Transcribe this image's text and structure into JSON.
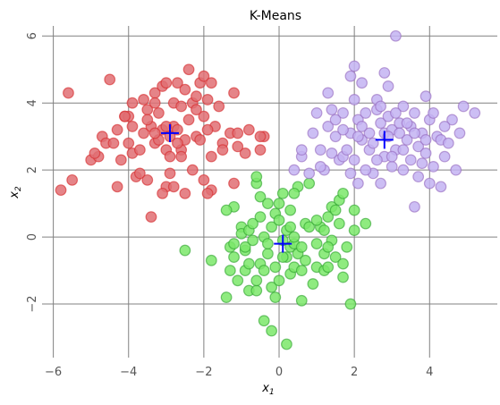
{
  "chart_data": {
    "type": "scatter",
    "title": "K-Means",
    "xlabel": "x",
    "xlabel_sub": "1",
    "ylabel": "x",
    "ylabel_sub": "2",
    "xlim": [
      -6.3,
      5.8
    ],
    "ylim": [
      -3.6,
      6.3
    ],
    "xticks": [
      -6,
      -4,
      -2,
      0,
      2,
      4
    ],
    "yticks": [
      -2,
      0,
      2,
      4,
      6
    ],
    "grid": true,
    "series": [
      {
        "color": "#d62728",
        "fill": "#e06f73",
        "points": [
          [
            -5.8,
            1.4
          ],
          [
            -5.5,
            1.7
          ],
          [
            -5.6,
            4.3
          ],
          [
            -5.0,
            2.3
          ],
          [
            -4.8,
            2.4
          ],
          [
            -4.7,
            3.0
          ],
          [
            -4.6,
            2.8
          ],
          [
            -4.4,
            2.8
          ],
          [
            -4.5,
            4.7
          ],
          [
            -4.3,
            3.2
          ],
          [
            -4.2,
            2.3
          ],
          [
            -4.1,
            3.6
          ],
          [
            -4.0,
            3.6
          ],
          [
            -4.0,
            2.8
          ],
          [
            -3.9,
            2.5
          ],
          [
            -3.9,
            4.0
          ],
          [
            -3.8,
            1.8
          ],
          [
            -3.7,
            1.9
          ],
          [
            -3.6,
            3.1
          ],
          [
            -3.5,
            1.7
          ],
          [
            -3.5,
            3.8
          ],
          [
            -3.4,
            3.3
          ],
          [
            -3.4,
            0.6
          ],
          [
            -3.3,
            4.3
          ],
          [
            -3.3,
            2.8
          ],
          [
            -3.2,
            2.9
          ],
          [
            -3.1,
            3.2
          ],
          [
            -3.1,
            4.5
          ],
          [
            -3.0,
            4.6
          ],
          [
            -3.0,
            2.6
          ],
          [
            -2.9,
            3.0
          ],
          [
            -2.9,
            2.4
          ],
          [
            -2.8,
            3.3
          ],
          [
            -2.8,
            4.0
          ],
          [
            -2.7,
            3.2
          ],
          [
            -2.6,
            2.6
          ],
          [
            -2.5,
            2.9
          ],
          [
            -2.4,
            3.5
          ],
          [
            -2.3,
            4.0
          ],
          [
            -2.2,
            3.0
          ],
          [
            -2.1,
            4.6
          ],
          [
            -2.0,
            3.6
          ],
          [
            -1.9,
            4.1
          ],
          [
            -1.8,
            2.4
          ],
          [
            -1.7,
            3.3
          ],
          [
            -1.5,
            2.8
          ],
          [
            -1.3,
            3.1
          ],
          [
            -1.2,
            4.3
          ],
          [
            -1.1,
            3.1
          ],
          [
            -0.9,
            2.5
          ],
          [
            -0.8,
            3.2
          ],
          [
            -0.5,
            2.6
          ],
          [
            -0.4,
            3.0
          ],
          [
            -3.6,
            4.1
          ],
          [
            -3.2,
            3.7
          ],
          [
            -2.6,
            3.9
          ],
          [
            -2.1,
            2.9
          ],
          [
            -1.9,
            3.2
          ],
          [
            -3.0,
            1.5
          ],
          [
            -2.8,
            1.5
          ],
          [
            -2.5,
            1.3
          ],
          [
            -1.8,
            1.4
          ],
          [
            -1.2,
            1.6
          ],
          [
            -2.3,
            2.0
          ],
          [
            -2.0,
            4.8
          ],
          [
            -1.6,
            3.9
          ],
          [
            -4.3,
            1.5
          ],
          [
            -2.4,
            5.0
          ],
          [
            -3.3,
            4.0
          ],
          [
            -2.7,
            4.6
          ],
          [
            -3.9,
            3.3
          ],
          [
            -2.2,
            4.2
          ],
          [
            -3.1,
            1.3
          ],
          [
            -2.0,
            1.7
          ],
          [
            -2.9,
            1.9
          ],
          [
            -1.9,
            1.3
          ],
          [
            -1.1,
            2.7
          ],
          [
            -0.5,
            3.0
          ],
          [
            -3.7,
            2.6
          ],
          [
            -4.9,
            2.5
          ],
          [
            -4.1,
            3.6
          ],
          [
            -3.3,
            3.1
          ],
          [
            -2.6,
            2.4
          ],
          [
            -1.5,
            2.6
          ],
          [
            -2.2,
            3.8
          ],
          [
            -2.7,
            2.8
          ],
          [
            -3.0,
            3.3
          ],
          [
            -2.5,
            4.4
          ],
          [
            -1.8,
            4.6
          ],
          [
            -3.5,
            3.5
          ]
        ]
      },
      {
        "color": "#2ca02c",
        "fill": "#7be86a",
        "points": [
          [
            -2.5,
            -0.4
          ],
          [
            -1.8,
            -0.7
          ],
          [
            -1.4,
            -1.8
          ],
          [
            -1.3,
            -1.0
          ],
          [
            -1.3,
            -0.3
          ],
          [
            -1.2,
            -0.6
          ],
          [
            -1.1,
            -1.3
          ],
          [
            -1.0,
            0.3
          ],
          [
            -1.0,
            0.1
          ],
          [
            -0.9,
            -1.0
          ],
          [
            -0.9,
            -0.4
          ],
          [
            -0.8,
            0.2
          ],
          [
            -0.8,
            -1.6
          ],
          [
            -0.7,
            0.4
          ],
          [
            -0.7,
            -0.1
          ],
          [
            -0.6,
            1.6
          ],
          [
            -0.6,
            -1.6
          ],
          [
            -0.5,
            -0.8
          ],
          [
            -0.5,
            1.2
          ],
          [
            -0.5,
            0.6
          ],
          [
            -0.4,
            -2.5
          ],
          [
            -0.4,
            -1.0
          ],
          [
            -0.4,
            0.0
          ],
          [
            -0.3,
            1.0
          ],
          [
            -0.3,
            -0.5
          ],
          [
            -0.2,
            -1.5
          ],
          [
            -0.2,
            0.3
          ],
          [
            -0.1,
            -0.9
          ],
          [
            -0.1,
            0.7
          ],
          [
            0.0,
            -1.3
          ],
          [
            0.0,
            1.0
          ],
          [
            0.1,
            -0.1
          ],
          [
            0.1,
            1.3
          ],
          [
            0.2,
            -0.6
          ],
          [
            0.2,
            0.2
          ],
          [
            0.3,
            -1.1
          ],
          [
            0.3,
            -0.3
          ],
          [
            0.3,
            0.8
          ],
          [
            0.4,
            -0.9
          ],
          [
            0.4,
            -0.2
          ],
          [
            0.4,
            0.0
          ],
          [
            0.5,
            -0.5
          ],
          [
            0.5,
            1.5
          ],
          [
            0.6,
            -0.3
          ],
          [
            0.6,
            -1.0
          ],
          [
            0.7,
            0.4
          ],
          [
            0.8,
            1.6
          ],
          [
            0.9,
            -1.4
          ],
          [
            1.0,
            -0.2
          ],
          [
            1.0,
            -0.9
          ],
          [
            1.1,
            0.3
          ],
          [
            1.2,
            -1.0
          ],
          [
            1.2,
            -0.5
          ],
          [
            1.3,
            0.6
          ],
          [
            1.3,
            -0.9
          ],
          [
            1.4,
            0.9
          ],
          [
            1.4,
            -0.1
          ],
          [
            1.5,
            -0.6
          ],
          [
            1.6,
            1.1
          ],
          [
            1.6,
            0.4
          ],
          [
            1.7,
            -0.8
          ],
          [
            1.7,
            -1.2
          ],
          [
            1.8,
            -0.3
          ],
          [
            2.0,
            0.2
          ],
          [
            2.0,
            0.8
          ],
          [
            2.3,
            0.4
          ],
          [
            -0.2,
            -2.8
          ],
          [
            0.2,
            -3.2
          ],
          [
            0.6,
            -1.9
          ],
          [
            1.9,
            -2.0
          ],
          [
            -0.6,
            -1.3
          ],
          [
            -1.2,
            0.9
          ],
          [
            -0.9,
            -0.3
          ],
          [
            0.8,
            0.3
          ],
          [
            1.0,
            0.5
          ],
          [
            1.2,
            0.2
          ],
          [
            -0.3,
            -0.2
          ],
          [
            0.0,
            0.5
          ],
          [
            0.4,
            1.3
          ],
          [
            -1.4,
            0.8
          ],
          [
            -0.6,
            1.8
          ],
          [
            0.1,
            -0.6
          ],
          [
            0.7,
            -0.7
          ],
          [
            1.3,
            -0.3
          ],
          [
            1.5,
            0.8
          ],
          [
            -0.8,
            -0.8
          ],
          [
            0.3,
            0.3
          ],
          [
            -0.1,
            -1.8
          ],
          [
            1.7,
            1.3
          ],
          [
            -1.2,
            -0.2
          ]
        ]
      },
      {
        "color": "#9467bd",
        "fill": "#c3b3f2",
        "points": [
          [
            0.4,
            2.0
          ],
          [
            0.6,
            2.4
          ],
          [
            0.6,
            2.6
          ],
          [
            0.8,
            1.9
          ],
          [
            0.9,
            3.1
          ],
          [
            1.0,
            3.7
          ],
          [
            1.1,
            2.6
          ],
          [
            1.2,
            2.0
          ],
          [
            1.3,
            3.3
          ],
          [
            1.3,
            4.3
          ],
          [
            1.4,
            3.8
          ],
          [
            1.4,
            2.5
          ],
          [
            1.5,
            3.0
          ],
          [
            1.6,
            2.3
          ],
          [
            1.7,
            2.4
          ],
          [
            1.7,
            3.7
          ],
          [
            1.8,
            2.6
          ],
          [
            1.9,
            1.9
          ],
          [
            1.9,
            3.1
          ],
          [
            2.0,
            4.1
          ],
          [
            2.0,
            2.3
          ],
          [
            2.1,
            3.5
          ],
          [
            2.1,
            1.6
          ],
          [
            2.2,
            2.9
          ],
          [
            2.2,
            4.6
          ],
          [
            2.3,
            3.7
          ],
          [
            2.4,
            3.1
          ],
          [
            2.4,
            2.6
          ],
          [
            2.5,
            1.9
          ],
          [
            2.6,
            3.8
          ],
          [
            2.6,
            4.1
          ],
          [
            2.7,
            3.4
          ],
          [
            2.7,
            1.6
          ],
          [
            2.8,
            2.4
          ],
          [
            2.8,
            3.1
          ],
          [
            2.9,
            3.6
          ],
          [
            2.9,
            4.5
          ],
          [
            3.0,
            2.1
          ],
          [
            3.0,
            3.2
          ],
          [
            3.1,
            6.0
          ],
          [
            3.1,
            2.6
          ],
          [
            3.2,
            3.4
          ],
          [
            3.3,
            2.0
          ],
          [
            3.3,
            3.9
          ],
          [
            3.4,
            2.9
          ],
          [
            3.5,
            3.3
          ],
          [
            3.5,
            2.3
          ],
          [
            3.6,
            3.7
          ],
          [
            3.7,
            2.7
          ],
          [
            3.7,
            1.8
          ],
          [
            3.8,
            3.1
          ],
          [
            3.9,
            2.5
          ],
          [
            3.9,
            4.2
          ],
          [
            4.0,
            1.6
          ],
          [
            4.0,
            3.5
          ],
          [
            4.1,
            2.1
          ],
          [
            4.2,
            3.0
          ],
          [
            4.3,
            1.5
          ],
          [
            4.3,
            2.9
          ],
          [
            4.4,
            2.4
          ],
          [
            4.6,
            3.5
          ],
          [
            4.7,
            2.0
          ],
          [
            4.8,
            3.1
          ],
          [
            4.9,
            3.9
          ],
          [
            5.2,
            3.7
          ],
          [
            3.6,
            0.9
          ],
          [
            2.0,
            5.1
          ],
          [
            2.8,
            4.9
          ],
          [
            1.9,
            4.8
          ],
          [
            3.2,
            3.1
          ],
          [
            2.5,
            2.8
          ],
          [
            3.0,
            2.4
          ],
          [
            3.4,
            3.4
          ],
          [
            2.2,
            3.3
          ],
          [
            1.7,
            3.2
          ],
          [
            4.1,
            3.7
          ],
          [
            3.8,
            2.2
          ],
          [
            2.6,
            2.3
          ],
          [
            3.3,
            2.6
          ],
          [
            2.9,
            3.0
          ],
          [
            4.5,
            2.8
          ],
          [
            2.3,
            2.0
          ],
          [
            1.5,
            3.5
          ],
          [
            3.6,
            3.1
          ],
          [
            2.1,
            3.0
          ],
          [
            1.1,
            2.1
          ],
          [
            3.9,
            2.9
          ],
          [
            4.4,
            3.3
          ],
          [
            2.7,
            3.9
          ],
          [
            3.1,
            3.7
          ]
        ]
      }
    ],
    "centroids": [
      [
        -2.9,
        3.1
      ],
      [
        0.1,
        -0.2
      ],
      [
        2.8,
        2.9
      ]
    ],
    "centroid_color": "#0000ff"
  }
}
